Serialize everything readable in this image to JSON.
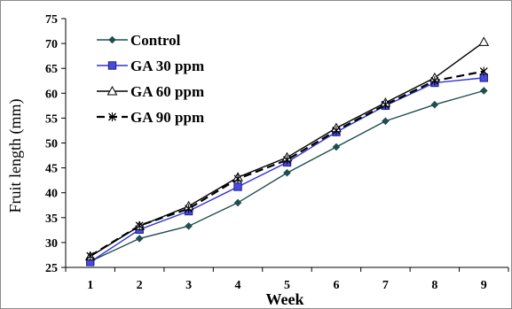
{
  "chart_data": {
    "type": "line",
    "title": "",
    "xlabel": "Week",
    "ylabel": "Fruit length (mm)",
    "x": [
      1,
      2,
      3,
      4,
      5,
      6,
      7,
      8,
      9
    ],
    "x_tick_labels": [
      "1",
      "2",
      "3",
      "4",
      "5",
      "6",
      "7",
      "8",
      "9"
    ],
    "ylim": [
      25,
      75
    ],
    "y_ticks": [
      25,
      30,
      35,
      40,
      45,
      50,
      55,
      60,
      65,
      70,
      75
    ],
    "y_tick_labels": [
      "25",
      "30",
      "35",
      "40",
      "45",
      "50",
      "55",
      "60",
      "65",
      "70",
      "75"
    ],
    "grid": false,
    "legend_position": "top-left",
    "series": [
      {
        "name": "Control",
        "values": [
          26.2,
          30.8,
          33.3,
          38.0,
          44.0,
          49.2,
          54.4,
          57.7,
          60.5
        ],
        "color": "#1f4e4e",
        "marker": "diamond",
        "line_style": "solid"
      },
      {
        "name": "GA 30 ppm",
        "values": [
          26.1,
          32.6,
          36.3,
          41.2,
          46.1,
          52.2,
          57.5,
          62.1,
          63.1
        ],
        "color": "#3333cc",
        "marker": "square",
        "line_style": "solid"
      },
      {
        "name": "GA 60 ppm",
        "values": [
          27.2,
          33.3,
          37.3,
          43.1,
          47.1,
          53.0,
          58.1,
          63.1,
          70.3
        ],
        "color": "#000000",
        "marker": "triangle",
        "line_style": "solid"
      },
      {
        "name": "GA 90 ppm",
        "values": [
          27.3,
          33.4,
          36.8,
          42.8,
          46.6,
          52.5,
          57.7,
          62.5,
          64.4
        ],
        "color": "#000000",
        "marker": "x",
        "line_style": "dashed"
      }
    ]
  }
}
